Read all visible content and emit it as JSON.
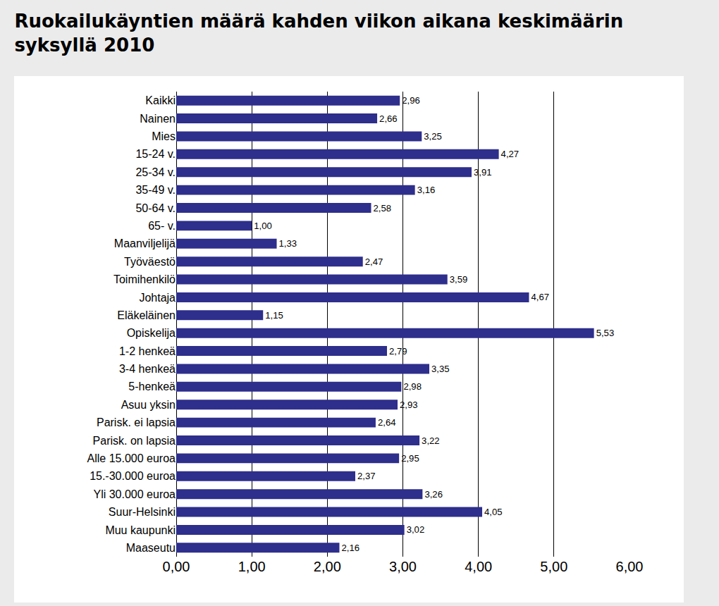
{
  "chart_data": {
    "type": "bar",
    "orientation": "horizontal",
    "title": "Ruokailukäyntien määrä kahden viikon aikana keskimäärin syksyllä 2010",
    "categories": [
      "Kaikki",
      "Nainen",
      "Mies",
      "15-24 v.",
      "25-34 v.",
      "35-49 v.",
      "50-64 v.",
      "65- v.",
      "Maanviljelijä",
      "Työväestö",
      "Toimihenkilö",
      "Johtaja",
      "Eläkeläinen",
      "Opiskelija",
      "1-2 henkeä",
      "3-4 henkeä",
      "5-henkeä",
      "Asuu yksin",
      "Parisk. ei lapsia",
      "Parisk. on lapsia",
      "Alle 15.000 euroa",
      "15.-30.000 euroa",
      "Yli 30.000 euroa",
      "Suur-Helsinki",
      "Muu kaupunki",
      "Maaseutu"
    ],
    "values": [
      2.96,
      2.66,
      3.25,
      4.27,
      3.91,
      3.16,
      2.58,
      1.0,
      1.33,
      2.47,
      3.59,
      4.67,
      1.15,
      5.53,
      2.79,
      3.35,
      2.98,
      2.93,
      2.64,
      3.22,
      2.95,
      2.37,
      3.26,
      4.05,
      3.02,
      2.16
    ],
    "value_labels": [
      "2,96",
      "2,66",
      "3,25",
      "4,27",
      "3,91",
      "3,16",
      "2,58",
      "1,00",
      "1,33",
      "2,47",
      "3,59",
      "4,67",
      "1,15",
      "5,53",
      "2,79",
      "3,35",
      "2,98",
      "2,93",
      "2,64",
      "3,22",
      "2,95",
      "2,37",
      "3,26",
      "4,05",
      "3,02",
      "2,16"
    ],
    "data_labels": true,
    "color": "#2e2e8c",
    "xlim": [
      0,
      6
    ],
    "xticks": [
      {
        "value": 0,
        "label": "0,00"
      },
      {
        "value": 1,
        "label": "1,00"
      },
      {
        "value": 2,
        "label": "2,00"
      },
      {
        "value": 3,
        "label": "3,00"
      },
      {
        "value": 4,
        "label": "4,00"
      },
      {
        "value": 5,
        "label": "5,00"
      },
      {
        "value": 6,
        "label": "6,00"
      }
    ],
    "grid": true
  }
}
